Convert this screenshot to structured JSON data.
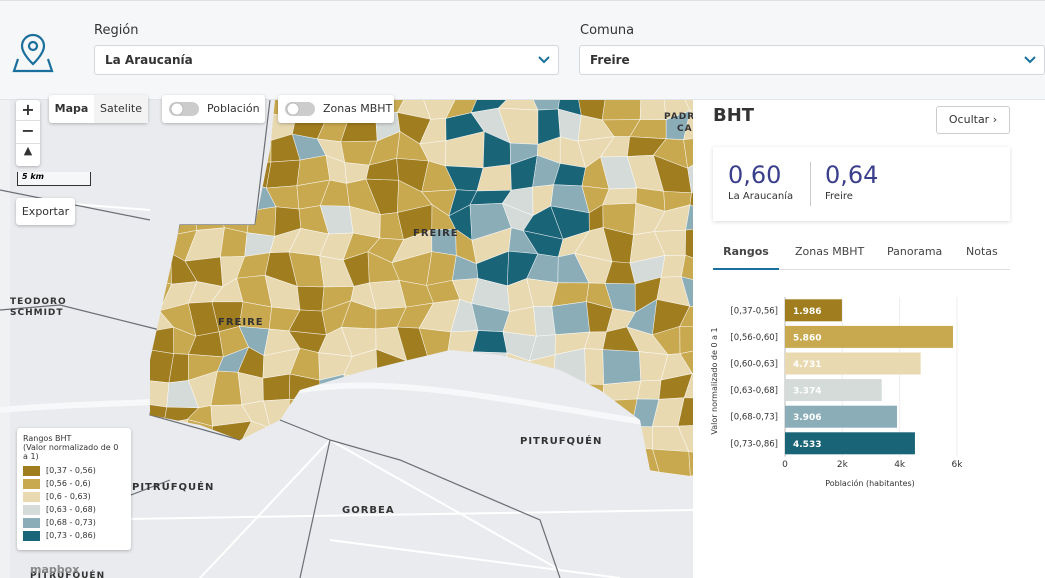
{
  "header": {
    "region_label": "Región",
    "region_value": "La Araucanía",
    "comuna_label": "Comuna",
    "comuna_value": "Freire"
  },
  "map": {
    "zoom_in": "+",
    "zoom_out": "−",
    "scale": "5 km",
    "export": "Exportar",
    "tabs": [
      "Mapa",
      "Satelite"
    ],
    "toggles": [
      "Población",
      "Zonas MBHT"
    ],
    "labels": [
      "FREIRE",
      "FREIRE",
      "TEODORO",
      "SCHMIDT",
      "PITRUFQUÉN",
      "PITRUFQUÉN",
      "GORBEA",
      "PITRUFQUÉN",
      "PADR",
      "CA"
    ],
    "legend": {
      "title": "Rangos BHT",
      "subtitle": "(Valor normalizado de 0 a 1)",
      "items": [
        "[0,37 - 0,56)",
        "[0,56 - 0,6)",
        "[0,6 - 0,63)",
        "[0,63 - 0,68)",
        "[0,68 - 0,73)",
        "[0,73 - 0,86)"
      ],
      "colors": [
        "#a07d1f",
        "#c9a94f",
        "#e8d9b1",
        "#d5dbd8",
        "#8aadb8",
        "#1a6478"
      ]
    },
    "attribution": "mapbox"
  },
  "panel": {
    "title": "BHT",
    "hide_button": "Ocultar",
    "stats": [
      {
        "value": "0,60",
        "label": "La Araucanía"
      },
      {
        "value": "0,64",
        "label": "Freire"
      }
    ],
    "tabs": [
      "Rangos",
      "Zonas MBHT",
      "Panorama",
      "Notas"
    ]
  },
  "chart_data": {
    "type": "hbar",
    "categories": [
      "[0,37-0,56]",
      "[0,56-0,60]",
      "[0,60-0,63]",
      "[0,63-0,68]",
      "[0,68-0,73]",
      "[0,73-0,86]"
    ],
    "values": [
      1986,
      5860,
      4731,
      3374,
      3906,
      4533
    ],
    "value_labels": [
      "1.986",
      "5.860",
      "4.731",
      "3.374",
      "3.906",
      "4.533"
    ],
    "colors": [
      "#a07d1f",
      "#c9a94f",
      "#e8d9b1",
      "#d5dbd8",
      "#8aadb8",
      "#1a6478"
    ],
    "xlim": [
      0,
      6000
    ],
    "xticks": [
      0,
      {
        "value": 2000,
        "label": "2k"
      },
      {
        "value": 4000,
        "label": "4k"
      },
      {
        "value": 6000,
        "label": "6k"
      }
    ],
    "xlabel": "Población (habitantes)",
    "ylabel": "Valor normalizado de 0 a 1"
  }
}
